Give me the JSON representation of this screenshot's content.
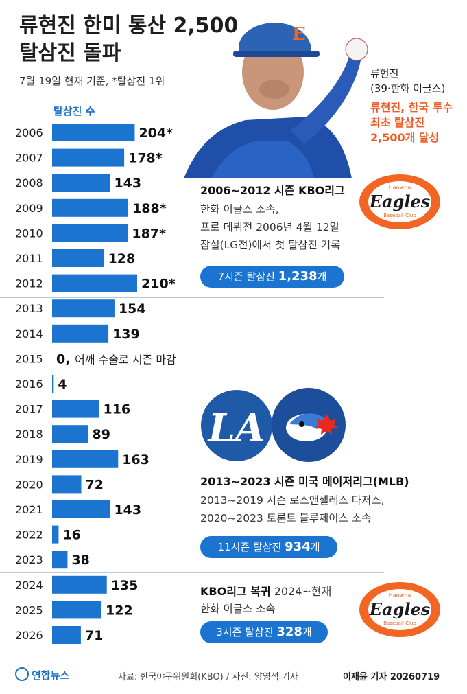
{
  "header": {
    "title": "류현진 한미 통산 2,500탈삼진 돌파",
    "subtitle": "7월 19일 현재 기준, *탈삼진 1위",
    "axis_label": "탈삼진 수"
  },
  "player": {
    "name": "류현진",
    "team": "(39·한화 이글스)",
    "headline": "류현진, 한국 투수 최초 탈삼진 2,500개 달성"
  },
  "sections": [
    {
      "title": "2006~2012 시즌 KBO리그",
      "desc1": "한화 이글스 소속,",
      "desc2": "프로 데뷔전 2006년 4월 12일",
      "desc3": "잠실(LG전)에서 첫 탈삼진 기록",
      "pill_prefix": "7시즌 탈삼진 ",
      "pill_value": "1,238",
      "pill_suffix": "개"
    },
    {
      "title": "2013~2023 시즌 미국 메이저리그(MLB)",
      "desc1": "2013~2019 시즌 로스앤젤레스 다저스,",
      "desc2": "2020~2023 토론토 블루제이스 소속",
      "pill_prefix": "11시즌 탈삼진 ",
      "pill_value": "934",
      "pill_suffix": "개"
    },
    {
      "title": "KBO리그 복귀",
      "title_rest": " 2024~현재",
      "desc1": "한화 이글스 소속",
      "pill_prefix": "3시즌 탈삼진 ",
      "pill_value": "328",
      "pill_suffix": "개"
    }
  ],
  "logos": {
    "eagles_small": "Hanwha",
    "eagles_main": "Eagles",
    "eagles_sub": "Baseball Club",
    "dodgers": "LA",
    "eagles_color": "#f26522",
    "dodgers_color": "#1e5aa8",
    "bluejays_color": "#1d4e9b"
  },
  "footer": {
    "brand": "연합뉴스",
    "source": "자료: 한국야구위원회(KBO) / 사진: 양영석 기자",
    "credit": "이재윤 기자 20260719"
  },
  "chart_data": {
    "type": "bar",
    "orientation": "horizontal",
    "categories": [
      "2006",
      "2007",
      "2008",
      "2009",
      "2010",
      "2011",
      "2012",
      "2013",
      "2014",
      "2015",
      "2016",
      "2017",
      "2018",
      "2019",
      "2020",
      "2021",
      "2022",
      "2023",
      "2024",
      "2025",
      "2026"
    ],
    "values": [
      204,
      178,
      143,
      188,
      187,
      128,
      210,
      154,
      139,
      0,
      4,
      116,
      89,
      163,
      72,
      143,
      16,
      38,
      135,
      122,
      71
    ],
    "value_labels": [
      "204*",
      "178*",
      "143",
      "188*",
      "187*",
      "128",
      "210*",
      "154",
      "139",
      "0",
      "4",
      "116",
      "89",
      "163",
      "72",
      "143",
      "16",
      "38",
      "135",
      "122",
      "71"
    ],
    "annotations": [
      {
        "category": "2015",
        "text": "어깨 수술로 시즌 마감"
      }
    ],
    "bar_color": "#1b75d0",
    "xlim": [
      0,
      210
    ]
  }
}
